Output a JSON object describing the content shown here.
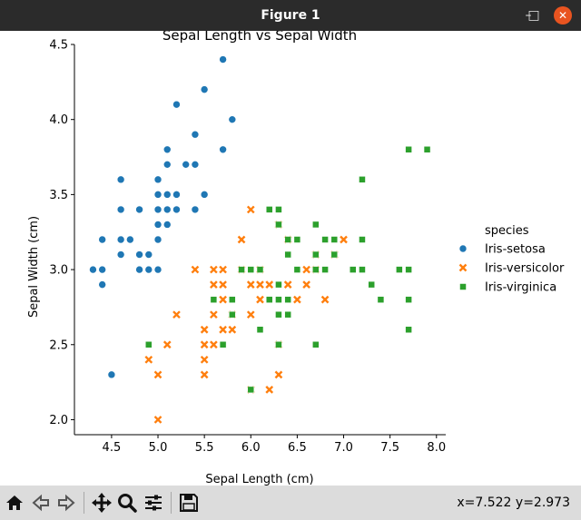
{
  "window": {
    "title": "Figure 1",
    "minimize_glyph": "–",
    "maximize_glyph": "□",
    "close_glyph": "✕"
  },
  "toolbar": {
    "buttons": [
      {
        "name": "home-icon"
      },
      {
        "name": "back-icon"
      },
      {
        "name": "forward-icon"
      },
      {
        "name": "pan-icon"
      },
      {
        "name": "zoom-icon"
      },
      {
        "name": "configure-subplots-icon"
      },
      {
        "name": "save-icon"
      }
    ],
    "coords": "x=7.522 y=2.973"
  },
  "chart_data": {
    "type": "scatter",
    "title": "Sepal Length vs Sepal Width",
    "xlabel": "Sepal Length (cm)",
    "ylabel": "Sepal Width (cm)",
    "xlim": [
      4.1,
      8.1
    ],
    "ylim": [
      1.9,
      4.5
    ],
    "xticks": [
      4.5,
      5.0,
      5.5,
      6.0,
      6.5,
      7.0,
      7.5,
      8.0
    ],
    "xtick_labels": [
      "4.5",
      "5.0",
      "5.5",
      "6.0",
      "6.5",
      "7.0",
      "7.5",
      "8.0"
    ],
    "yticks": [
      2.0,
      2.5,
      3.0,
      3.5,
      4.0,
      4.5
    ],
    "ytick_labels": [
      "2.0",
      "2.5",
      "3.0",
      "3.5",
      "4.0",
      "4.5"
    ],
    "legend_title": "species",
    "legend_position": "right",
    "grid": false,
    "series": [
      {
        "name": "Iris-setosa",
        "marker": "circle",
        "color": "#1f77b4",
        "points": [
          [
            4.3,
            3.0
          ],
          [
            4.4,
            3.0
          ],
          [
            4.4,
            2.9
          ],
          [
            4.4,
            3.2
          ],
          [
            4.5,
            2.3
          ],
          [
            4.6,
            3.1
          ],
          [
            4.6,
            3.2
          ],
          [
            4.6,
            3.4
          ],
          [
            4.6,
            3.6
          ],
          [
            4.7,
            3.2
          ],
          [
            4.8,
            3.0
          ],
          [
            4.8,
            3.1
          ],
          [
            4.8,
            3.4
          ],
          [
            4.9,
            3.0
          ],
          [
            4.9,
            3.1
          ],
          [
            5.0,
            3.0
          ],
          [
            5.0,
            3.2
          ],
          [
            5.0,
            3.3
          ],
          [
            5.0,
            3.4
          ],
          [
            5.0,
            3.5
          ],
          [
            5.0,
            3.6
          ],
          [
            5.1,
            3.3
          ],
          [
            5.1,
            3.4
          ],
          [
            5.1,
            3.5
          ],
          [
            5.1,
            3.7
          ],
          [
            5.1,
            3.8
          ],
          [
            5.2,
            3.4
          ],
          [
            5.2,
            3.5
          ],
          [
            5.2,
            4.1
          ],
          [
            5.3,
            3.7
          ],
          [
            5.4,
            3.4
          ],
          [
            5.4,
            3.7
          ],
          [
            5.4,
            3.9
          ],
          [
            5.5,
            3.5
          ],
          [
            5.5,
            4.2
          ],
          [
            5.7,
            3.8
          ],
          [
            5.7,
            4.4
          ],
          [
            5.8,
            4.0
          ]
        ]
      },
      {
        "name": "Iris-versicolor",
        "marker": "x",
        "color": "#ff7f0e",
        "points": [
          [
            4.9,
            2.4
          ],
          [
            5.0,
            2.0
          ],
          [
            5.0,
            2.3
          ],
          [
            5.1,
            2.5
          ],
          [
            5.2,
            2.7
          ],
          [
            5.4,
            3.0
          ],
          [
            5.5,
            2.3
          ],
          [
            5.5,
            2.4
          ],
          [
            5.5,
            2.5
          ],
          [
            5.5,
            2.6
          ],
          [
            5.6,
            2.5
          ],
          [
            5.6,
            2.7
          ],
          [
            5.6,
            2.9
          ],
          [
            5.6,
            3.0
          ],
          [
            5.7,
            2.6
          ],
          [
            5.7,
            2.8
          ],
          [
            5.7,
            2.9
          ],
          [
            5.7,
            3.0
          ],
          [
            5.8,
            2.6
          ],
          [
            5.8,
            2.7
          ],
          [
            5.9,
            3.0
          ],
          [
            5.9,
            3.2
          ],
          [
            6.0,
            2.2
          ],
          [
            6.0,
            2.7
          ],
          [
            6.0,
            2.9
          ],
          [
            6.0,
            3.4
          ],
          [
            6.1,
            2.8
          ],
          [
            6.1,
            2.9
          ],
          [
            6.1,
            3.0
          ],
          [
            6.2,
            2.2
          ],
          [
            6.2,
            2.9
          ],
          [
            6.3,
            2.3
          ],
          [
            6.3,
            2.5
          ],
          [
            6.3,
            3.3
          ],
          [
            6.4,
            2.9
          ],
          [
            6.4,
            3.2
          ],
          [
            6.5,
            2.8
          ],
          [
            6.6,
            2.9
          ],
          [
            6.6,
            3.0
          ],
          [
            6.7,
            3.0
          ],
          [
            6.7,
            3.1
          ],
          [
            6.8,
            2.8
          ],
          [
            6.9,
            3.1
          ],
          [
            7.0,
            3.2
          ]
        ]
      },
      {
        "name": "Iris-virginica",
        "marker": "square",
        "color": "#2ca02c",
        "points": [
          [
            4.9,
            2.5
          ],
          [
            5.6,
            2.8
          ],
          [
            5.7,
            2.5
          ],
          [
            5.8,
            2.7
          ],
          [
            5.8,
            2.8
          ],
          [
            5.9,
            3.0
          ],
          [
            6.0,
            2.2
          ],
          [
            6.0,
            3.0
          ],
          [
            6.1,
            2.6
          ],
          [
            6.1,
            3.0
          ],
          [
            6.2,
            2.8
          ],
          [
            6.2,
            3.4
          ],
          [
            6.3,
            2.5
          ],
          [
            6.3,
            2.7
          ],
          [
            6.3,
            2.8
          ],
          [
            6.3,
            2.9
          ],
          [
            6.3,
            3.3
          ],
          [
            6.3,
            3.4
          ],
          [
            6.4,
            2.7
          ],
          [
            6.4,
            2.8
          ],
          [
            6.4,
            3.1
          ],
          [
            6.4,
            3.2
          ],
          [
            6.5,
            3.0
          ],
          [
            6.5,
            3.2
          ],
          [
            6.7,
            2.5
          ],
          [
            6.7,
            3.0
          ],
          [
            6.7,
            3.1
          ],
          [
            6.7,
            3.3
          ],
          [
            6.8,
            3.0
          ],
          [
            6.8,
            3.2
          ],
          [
            6.9,
            3.1
          ],
          [
            6.9,
            3.2
          ],
          [
            7.1,
            3.0
          ],
          [
            7.2,
            3.0
          ],
          [
            7.2,
            3.2
          ],
          [
            7.2,
            3.6
          ],
          [
            7.3,
            2.9
          ],
          [
            7.4,
            2.8
          ],
          [
            7.6,
            3.0
          ],
          [
            7.7,
            2.6
          ],
          [
            7.7,
            2.8
          ],
          [
            7.7,
            3.0
          ],
          [
            7.7,
            3.8
          ],
          [
            7.9,
            3.8
          ]
        ]
      }
    ]
  }
}
